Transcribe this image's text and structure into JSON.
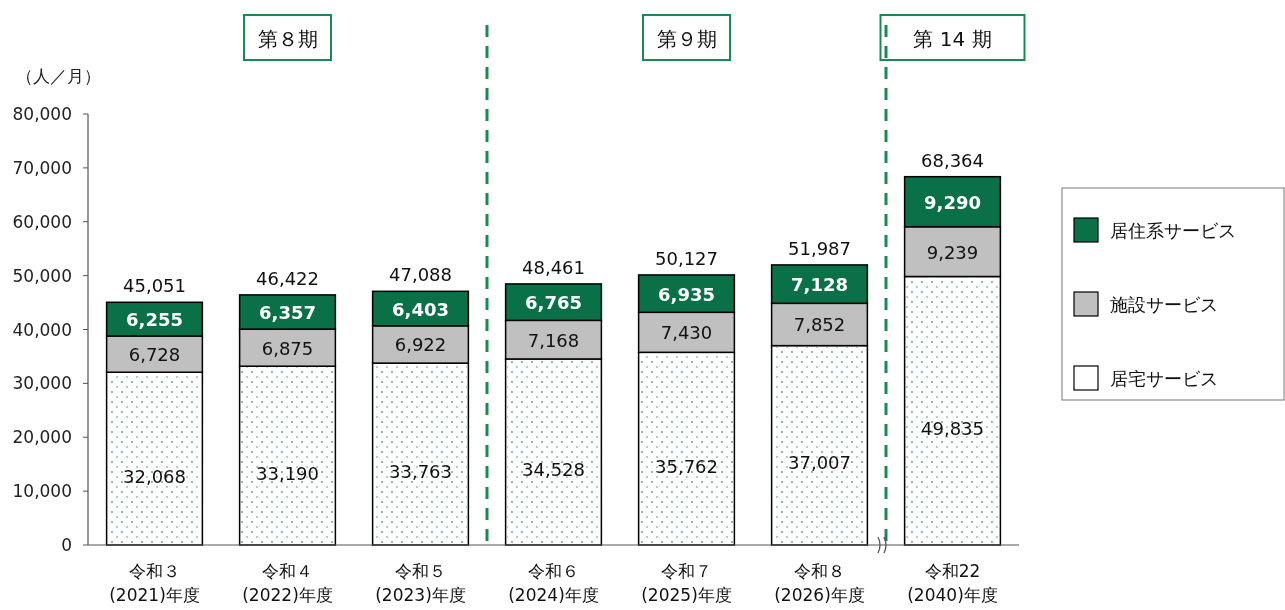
{
  "chart_data": {
    "type": "bar",
    "stacked": true,
    "ylabel": "（人／月）",
    "annotations": [
      "第８期",
      "第９期",
      "第 14 期"
    ],
    "categories": [
      "令和３\n(2021)年度",
      "令和４\n(2022)年度",
      "令和５\n(2023)年度",
      "令和６\n(2024)年度",
      "令和７\n(2025)年度",
      "令和８\n(2026)年度",
      "令和22\n(2040)年度"
    ],
    "series": [
      {
        "name": "居宅サービス",
        "color": "#ffffff",
        "values": [
          32068,
          33190,
          33763,
          34528,
          35762,
          37007,
          49835
        ],
        "value_labels": [
          "32,068",
          "33,190",
          "33,763",
          "34,528",
          "35,762",
          "37,007",
          "49,835"
        ]
      },
      {
        "name": "施設サービス",
        "color": "#c0c0c0",
        "values": [
          6728,
          6875,
          6922,
          7168,
          7430,
          7852,
          9239
        ],
        "value_labels": [
          "6,728",
          "6,875",
          "6,922",
          "7,168",
          "7,430",
          "7,852",
          "9,239"
        ]
      },
      {
        "name": "居住系サービス",
        "color": "#0a7047",
        "values": [
          6255,
          6357,
          6403,
          6765,
          6935,
          7128,
          9290
        ],
        "value_labels": [
          "6,255",
          "6,357",
          "6,403",
          "6,765",
          "6,935",
          "7,128",
          "9,290"
        ]
      }
    ],
    "totals": [
      "45,051",
      "46,422",
      "47,088",
      "48,461",
      "50,127",
      "51,987",
      "68,364"
    ],
    "ylim": [
      0,
      80000
    ],
    "yticks": [
      0,
      {
        "value": 10000,
        "label": "10,000"
      },
      {
        "value": 20000,
        "label": "20,000"
      },
      {
        "value": 30000,
        "label": "30,000"
      },
      {
        "value": 40000,
        "label": "40,000"
      },
      {
        "value": 50000,
        "label": "50,000"
      },
      {
        "value": 60000,
        "label": "60,000"
      },
      {
        "value": 70000,
        "label": "70,000"
      },
      {
        "value": 80000,
        "label": "80,000"
      }
    ],
    "legend": "right"
  }
}
